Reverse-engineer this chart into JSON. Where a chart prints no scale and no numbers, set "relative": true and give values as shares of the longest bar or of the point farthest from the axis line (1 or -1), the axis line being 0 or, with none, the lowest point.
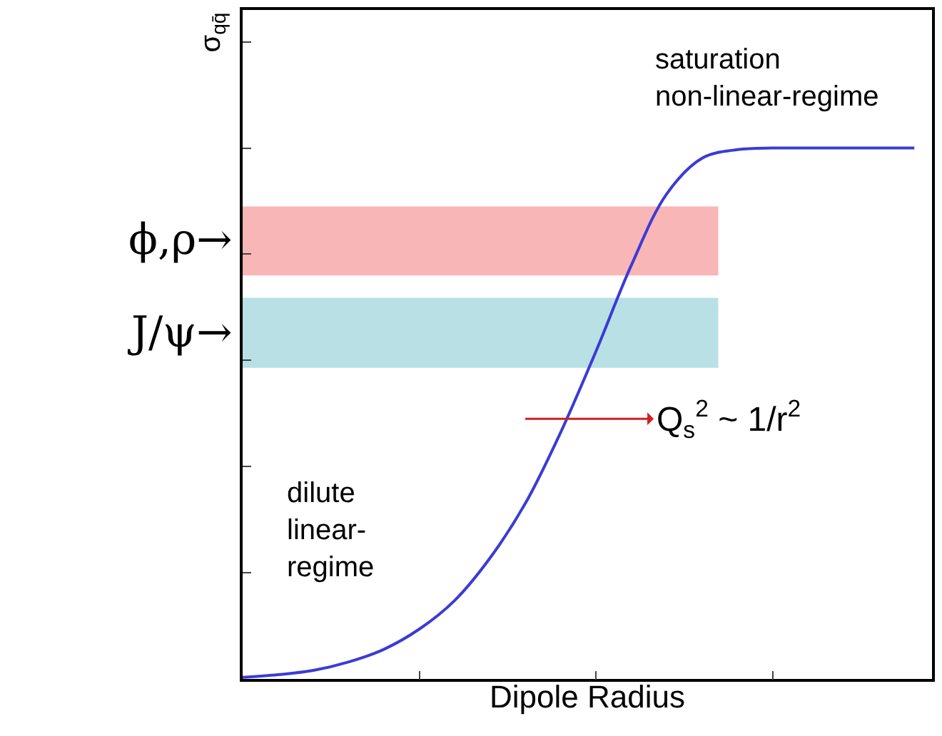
{
  "chart_data": {
    "type": "line",
    "relative": true,
    "xlabel": "Dipole Radius",
    "ylabel": "σ$_{qq̄}$",
    "categories": [
      null,
      null,
      null,
      null,
      null,
      null,
      null,
      null,
      null,
      null,
      null,
      null,
      null,
      null,
      null,
      null,
      null,
      null,
      null,
      null
    ],
    "series": [
      {
        "color": "#3b3bd6",
        "values": [
          0.003,
          0.008,
          0.016,
          0.032,
          0.056,
          0.094,
          0.148,
          0.228,
          0.331,
          0.465,
          0.618,
          0.78,
          0.914,
          0.981,
          0.997,
          1,
          1,
          1,
          1,
          1
        ]
      }
    ],
    "bands": [
      {
        "axis": "y",
        "from": 0.76,
        "to": 0.89,
        "label": "ϕ,ρ→",
        "color": "#f47a7a"
      },
      {
        "axis": "y",
        "from": 0.586,
        "to": 0.718,
        "label": "J/ψ→",
        "color": "#7fc8d0"
      }
    ],
    "annotations": [
      "saturation\nnon-linear-regime",
      "dilute\nlinear-\nregime",
      "Q$_{s}$$^{2}$ ~ 1/r$^{2}$"
    ],
    "tick_labels": false,
    "grid": false,
    "legend": false,
    "marker": "none",
    "line_style": "solid"
  }
}
